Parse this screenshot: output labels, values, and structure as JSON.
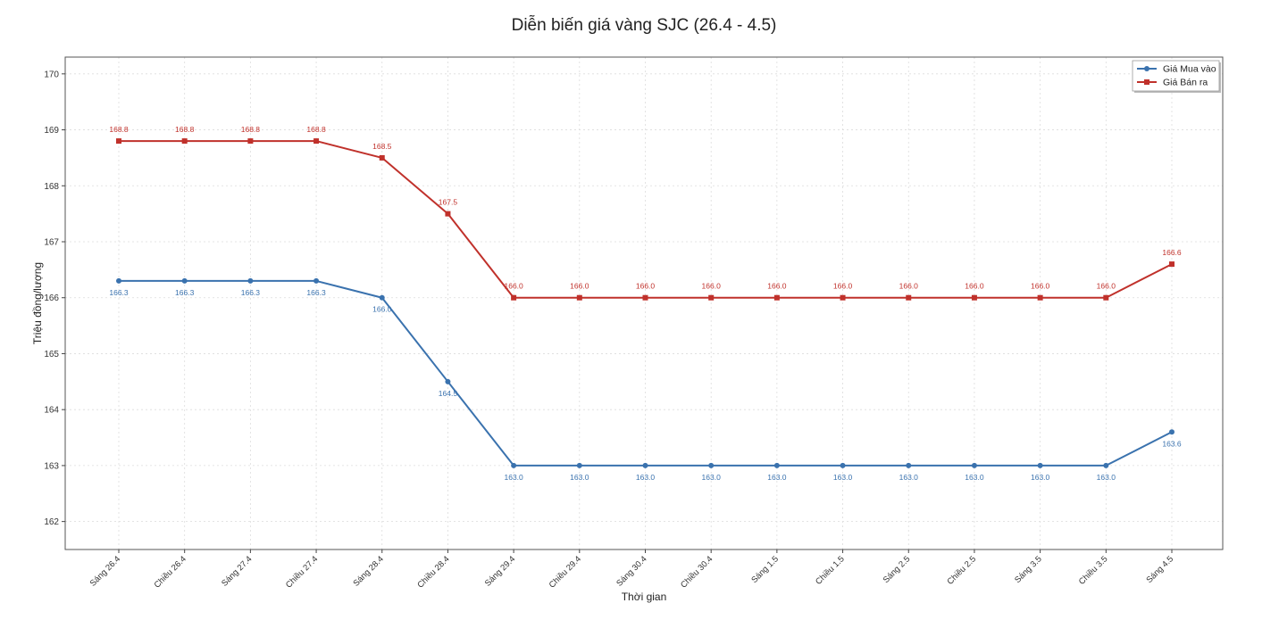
{
  "chart_data": {
    "type": "line",
    "title": "Diễn biến giá vàng SJC (26.4 - 4.5)",
    "xlabel": "Thời gian",
    "ylabel": "Triệu đồng/lượng",
    "ylim": [
      161.5,
      170.3
    ],
    "yticks": [
      162,
      163,
      164,
      165,
      166,
      167,
      168,
      169,
      170
    ],
    "grid": true,
    "legend_position": "top-right",
    "categories": [
      "Sáng 26.4",
      "Chiều 26.4",
      "Sáng 27.4",
      "Chiều 27.4",
      "Sáng 28.4",
      "Chiều 28.4",
      "Sáng 29.4",
      "Chiều 29.4",
      "Sáng 30.4",
      "Chiều 30.4",
      "Sáng 1.5",
      "Chiều 1.5",
      "Sáng 2.5",
      "Chiều 2.5",
      "Sáng 3.5",
      "Chiều 3.5",
      "Sáng 4.5"
    ],
    "series": [
      {
        "name": "Giá Mua vào",
        "color": "#3a72ae",
        "marker": "circle",
        "label_position": "below",
        "values": [
          166.3,
          166.3,
          166.3,
          166.3,
          166.0,
          164.5,
          163.0,
          163.0,
          163.0,
          163.0,
          163.0,
          163.0,
          163.0,
          163.0,
          163.0,
          163.0,
          163.6
        ]
      },
      {
        "name": "Giá Bán ra",
        "color": "#c0312b",
        "marker": "square",
        "label_position": "above",
        "values": [
          168.8,
          168.8,
          168.8,
          168.8,
          168.5,
          167.5,
          166.0,
          166.0,
          166.0,
          166.0,
          166.0,
          166.0,
          166.0,
          166.0,
          166.0,
          166.0,
          166.6
        ]
      }
    ]
  }
}
